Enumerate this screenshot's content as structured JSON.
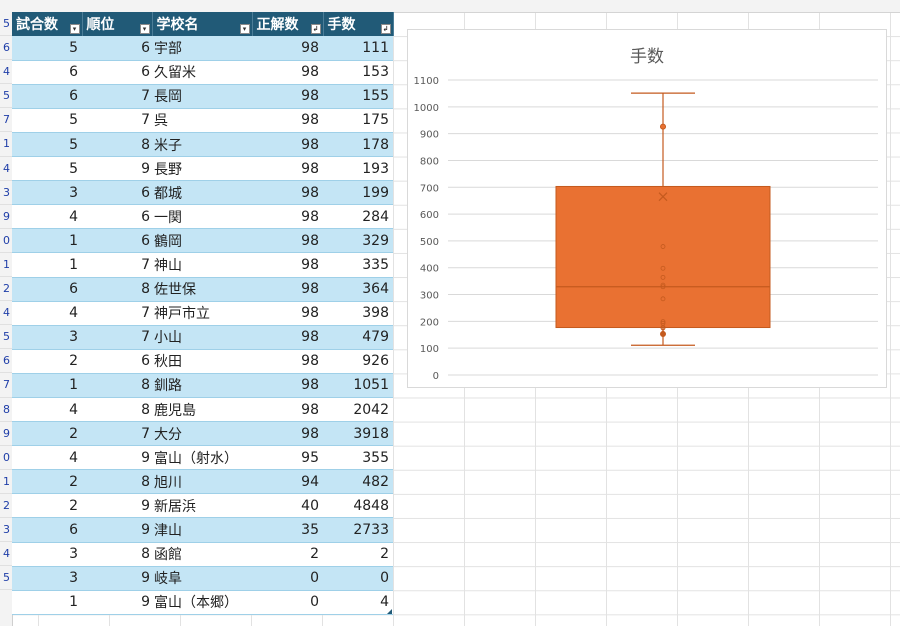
{
  "table": {
    "headers": [
      "試合数",
      "順位",
      "学校名",
      "正解数",
      "手数"
    ],
    "header_markers": [
      "▾",
      "▾",
      "▾",
      "↲",
      "↲"
    ],
    "rows": [
      {
        "row_label": "5",
        "games": "5",
        "rank": "6",
        "school": "宇部",
        "correct": "98",
        "moves": "111"
      },
      {
        "row_label": "6",
        "games": "6",
        "rank": "6",
        "school": "久留米",
        "correct": "98",
        "moves": "153"
      },
      {
        "row_label": "4",
        "games": "6",
        "rank": "7",
        "school": "長岡",
        "correct": "98",
        "moves": "155"
      },
      {
        "row_label": "5",
        "games": "5",
        "rank": "7",
        "school": "呉",
        "correct": "98",
        "moves": "175"
      },
      {
        "row_label": "7",
        "games": "5",
        "rank": "8",
        "school": "米子",
        "correct": "98",
        "moves": "178"
      },
      {
        "row_label": "1",
        "games": "5",
        "rank": "9",
        "school": "長野",
        "correct": "98",
        "moves": "193"
      },
      {
        "row_label": "4",
        "games": "3",
        "rank": "6",
        "school": "都城",
        "correct": "98",
        "moves": "199"
      },
      {
        "row_label": "3",
        "games": "4",
        "rank": "6",
        "school": "一関",
        "correct": "98",
        "moves": "284"
      },
      {
        "row_label": "9",
        "games": "1",
        "rank": "6",
        "school": "鶴岡",
        "correct": "98",
        "moves": "329"
      },
      {
        "row_label": "0",
        "games": "1",
        "rank": "7",
        "school": "神山",
        "correct": "98",
        "moves": "335"
      },
      {
        "row_label": "1",
        "games": "6",
        "rank": "8",
        "school": "佐世保",
        "correct": "98",
        "moves": "364"
      },
      {
        "row_label": "2",
        "games": "4",
        "rank": "7",
        "school": "神戸市立",
        "correct": "98",
        "moves": "398"
      },
      {
        "row_label": "4",
        "games": "3",
        "rank": "7",
        "school": "小山",
        "correct": "98",
        "moves": "479"
      },
      {
        "row_label": "5",
        "games": "2",
        "rank": "6",
        "school": "秋田",
        "correct": "98",
        "moves": "926"
      },
      {
        "row_label": "6",
        "games": "1",
        "rank": "8",
        "school": "釧路",
        "correct": "98",
        "moves": "1051"
      },
      {
        "row_label": "7",
        "games": "4",
        "rank": "8",
        "school": "鹿児島",
        "correct": "98",
        "moves": "2042"
      },
      {
        "row_label": "8",
        "games": "2",
        "rank": "7",
        "school": "大分",
        "correct": "98",
        "moves": "3918"
      },
      {
        "row_label": "9",
        "games": "4",
        "rank": "9",
        "school": "富山（射水）",
        "correct": "95",
        "moves": "355"
      },
      {
        "row_label": "0",
        "games": "2",
        "rank": "8",
        "school": "旭川",
        "correct": "94",
        "moves": "482"
      },
      {
        "row_label": "1",
        "games": "2",
        "rank": "9",
        "school": "新居浜",
        "correct": "40",
        "moves": "4848"
      },
      {
        "row_label": "2",
        "games": "6",
        "rank": "9",
        "school": "津山",
        "correct": "35",
        "moves": "2733"
      },
      {
        "row_label": "3",
        "games": "3",
        "rank": "8",
        "school": "函館",
        "correct": "2",
        "moves": "2"
      },
      {
        "row_label": "4",
        "games": "3",
        "rank": "9",
        "school": "岐阜",
        "correct": "0",
        "moves": "0"
      },
      {
        "row_label": "5",
        "games": "1",
        "rank": "9",
        "school": "富山（本郷）",
        "correct": "0",
        "moves": "4"
      }
    ]
  },
  "colors": {
    "header_bg": "#215a77",
    "band": "#c4e5f5",
    "box_fill": "#e97132",
    "box_stroke": "#c45a1e"
  },
  "chart_data": {
    "type": "boxplot",
    "title": "手数",
    "ylim": [
      0,
      1100
    ],
    "yticks": [
      0,
      100,
      200,
      300,
      400,
      500,
      600,
      700,
      800,
      900,
      1000,
      1100
    ],
    "grid": true,
    "legend": "none",
    "box": {
      "min": 111,
      "q1": 177,
      "median": 329,
      "q3": 703,
      "max": 1051,
      "mean": 665
    },
    "outliers": [
      926
    ],
    "inner_points": [
      153,
      155,
      175,
      178,
      193,
      199,
      284,
      329,
      335,
      364,
      398,
      479
    ]
  }
}
